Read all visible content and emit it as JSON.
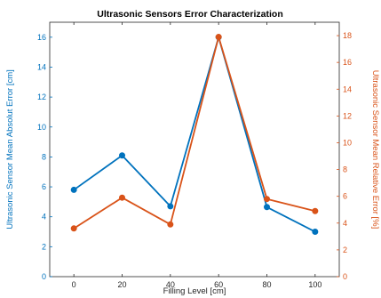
{
  "chart_data": {
    "type": "line",
    "title": "Ultrasonic Sensors Error Characterization",
    "xlabel": "Filling Level [cm]",
    "ylabel_left": "Ultrasonic Sensor Mean Absolut Error [cm]",
    "ylabel_right": "Ultrasonic Sensor Mean Relative Error [%]",
    "x": [
      0,
      20,
      40,
      60,
      80,
      100
    ],
    "xlim": [
      -10,
      110
    ],
    "xticks": [
      0,
      20,
      40,
      60,
      80,
      100
    ],
    "ylim_left": [
      0,
      17
    ],
    "yticks_left": [
      0,
      2,
      4,
      6,
      8,
      10,
      12,
      14,
      16
    ],
    "ylim_right": [
      0,
      19
    ],
    "yticks_right": [
      0,
      2,
      4,
      6,
      8,
      10,
      12,
      14,
      16,
      18
    ],
    "grid": false,
    "series": [
      {
        "axis": "left",
        "color": "#0072BD",
        "values": [
          5.8,
          8.1,
          4.7,
          16.0,
          4.65,
          3.0
        ]
      },
      {
        "axis": "right",
        "color": "#D95319",
        "values": [
          3.6,
          5.9,
          3.9,
          17.9,
          5.8,
          4.9
        ]
      }
    ]
  }
}
